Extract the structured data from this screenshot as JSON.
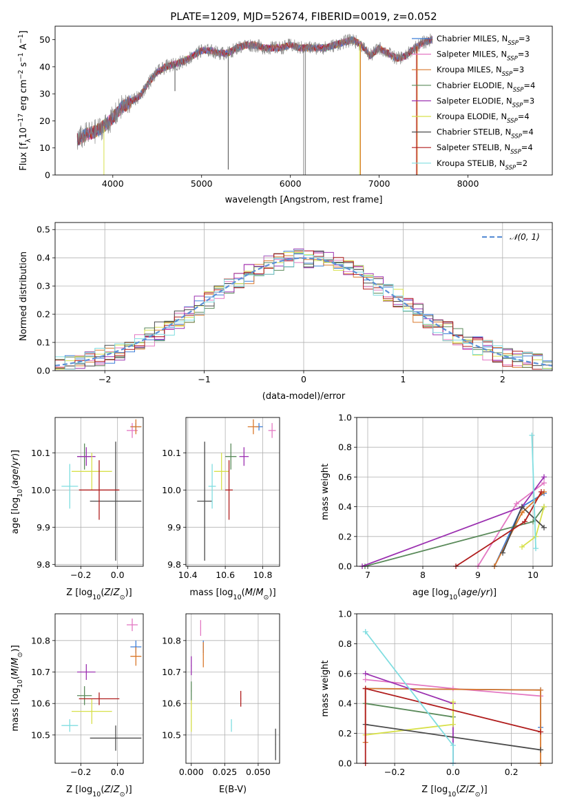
{
  "figure_title": "PLATE=1209, MJD=52674, FIBERID=0019, z=0.052",
  "colors": {
    "Chabrier MILES": "#3b7dd8",
    "Salpeter MILES": "#e377c2",
    "Kroupa MILES": "#d9782b",
    "Chabrier ELODIE": "#5a8a5a",
    "Salpeter ELODIE": "#9b30b0",
    "Kroupa ELODIE": "#d7e04a",
    "Chabrier STELIB": "#4a4a4a",
    "Salpeter STELIB": "#b01c1c",
    "Kroupa STELIB": "#7fdde0",
    "gaussian": "#5b8fd6",
    "data": "#808080"
  },
  "chart_data": [
    {
      "id": "spectrum",
      "type": "line",
      "xlabel": "wavelength [Angstrom, rest frame]",
      "ylabel_parts": [
        "Flux [f",
        "λ",
        "10",
        "−17",
        " erg cm",
        "−2",
        " s",
        "−1",
        " A",
        "−1",
        "]"
      ],
      "xlim": [
        3350,
        8950
      ],
      "ylim": [
        0,
        55
      ],
      "xticks": [
        4000,
        5000,
        6000,
        7000,
        8000
      ],
      "yticks": [
        0,
        10,
        20,
        30,
        40,
        50
      ],
      "grid": false,
      "legend_position": "top-right",
      "legend": [
        {
          "name": "Chabrier MILES",
          "nssp": "3"
        },
        {
          "name": "Salpeter MILES",
          "nssp": "3"
        },
        {
          "name": "Kroupa MILES",
          "nssp": "3"
        },
        {
          "name": "Chabrier ELODIE",
          "nssp": "4"
        },
        {
          "name": "Salpeter ELODIE",
          "nssp": "3"
        },
        {
          "name": "Kroupa ELODIE",
          "nssp": "4"
        },
        {
          "name": "Chabrier STELIB",
          "nssp": "4"
        },
        {
          "name": "Salpeter STELIB",
          "nssp": "4"
        },
        {
          "name": "Kroupa STELIB",
          "nssp": "2"
        }
      ],
      "continuum": {
        "x": [
          3600,
          3700,
          3800,
          3900,
          4000,
          4100,
          4200,
          4300,
          4400,
          4500,
          4600,
          4700,
          4800,
          4900,
          5000,
          5100,
          5200,
          5300,
          5400,
          5500,
          5600,
          5700,
          5800,
          5900,
          6000,
          6100,
          6200,
          6300,
          6400,
          6500,
          6600,
          6700,
          6800,
          6900,
          7000,
          7100,
          7200,
          7300,
          7400,
          7500,
          7600
        ],
        "y": [
          13,
          15,
          16,
          18,
          21,
          25,
          27,
          29,
          34,
          38,
          40,
          41,
          42,
          44,
          46,
          46,
          45,
          45,
          47,
          48,
          48,
          47,
          47,
          47,
          48,
          47,
          47,
          47,
          47,
          48,
          49,
          50,
          48,
          44,
          47,
          45,
          43,
          44,
          47,
          49,
          50
        ]
      },
      "spikes": [
        {
          "x": 3900,
          "y": 0,
          "series": "Kroupa ELODIE"
        },
        {
          "x": 4700,
          "y": 31,
          "series": "Chabrier STELIB"
        },
        {
          "x": 5300,
          "y": 2,
          "series": "Chabrier STELIB"
        },
        {
          "x": 6150,
          "y": 0,
          "series": "data"
        },
        {
          "x": 6170,
          "y": 0,
          "series": "data"
        },
        {
          "x": 6780,
          "y": 0,
          "series": "Kroupa ELODIE"
        },
        {
          "x": 6790,
          "y": 0,
          "series": "Kroupa MILES"
        },
        {
          "x": 7420,
          "y": 0,
          "series": "Salpeter STELIB"
        },
        {
          "x": 7430,
          "y": 0,
          "series": "Kroupa MILES"
        }
      ]
    },
    {
      "id": "residuals",
      "type": "line",
      "xlabel": "(data-model)/error",
      "ylabel": "Normed distribution",
      "xlim": [
        -2.5,
        2.5
      ],
      "ylim": [
        0,
        0.525
      ],
      "xticks": [
        -2,
        -1,
        0,
        1,
        2
      ],
      "yticks": [
        0.0,
        0.1,
        0.2,
        0.3,
        0.4,
        0.5
      ],
      "grid": true,
      "legend_position": "top-right",
      "legend": [
        {
          "name": "𝒩(0, 1)"
        }
      ],
      "bin_width": 0.1,
      "x_start": -2.5
    },
    {
      "id": "age-vs-Z",
      "type": "scatter",
      "xlabel": "Z [log10(Z/Z⊙)]",
      "ylabel": "age  [log10(age/yr)]",
      "xlim": [
        -0.34,
        0.14
      ],
      "ylim": [
        9.795,
        10.195
      ],
      "xticks": [
        -0.2,
        0.0
      ],
      "yticks": [
        9.8,
        9.9,
        10.0,
        10.1
      ],
      "grid": true,
      "points": [
        {
          "series": "Chabrier MILES",
          "x": 0.1,
          "y": 10.17,
          "xerr": 0.03,
          "yerr": 0.01
        },
        {
          "series": "Salpeter MILES",
          "x": 0.08,
          "y": 10.16,
          "xerr": 0.03,
          "yerr": 0.02
        },
        {
          "series": "Kroupa MILES",
          "x": 0.1,
          "y": 10.17,
          "xerr": 0.03,
          "yerr": 0.02
        },
        {
          "series": "Chabrier ELODIE",
          "x": -0.18,
          "y": 10.09,
          "xerr": 0.04,
          "yerr": 0.035
        },
        {
          "series": "Salpeter ELODIE",
          "x": -0.17,
          "y": 10.09,
          "xerr": 0.05,
          "yerr": 0.025
        },
        {
          "series": "Kroupa ELODIE",
          "x": -0.14,
          "y": 10.05,
          "xerr": 0.11,
          "yerr": 0.05
        },
        {
          "series": "Chabrier STELIB",
          "x": -0.01,
          "y": 9.97,
          "xerr": 0.14,
          "yerr": 0.16
        },
        {
          "series": "Salpeter STELIB",
          "x": -0.1,
          "y": 10.0,
          "xerr": 0.11,
          "yerr": 0.08
        },
        {
          "series": "Kroupa STELIB",
          "x": -0.26,
          "y": 10.01,
          "xerr": 0.045,
          "yerr": 0.06
        }
      ]
    },
    {
      "id": "age-vs-mass",
      "type": "scatter",
      "xlabel": "mass [log10(M/M⊙)]",
      "ylabel": "",
      "xlim": [
        10.39,
        10.89
      ],
      "ylim": [
        9.795,
        10.195
      ],
      "xticks": [
        10.4,
        10.6,
        10.8
      ],
      "yticks": [
        9.8,
        9.9,
        10.0,
        10.1
      ],
      "grid": true,
      "points": [
        {
          "series": "Chabrier MILES",
          "x": 10.78,
          "y": 10.17,
          "xerr": 0.02,
          "yerr": 0.01
        },
        {
          "series": "Salpeter MILES",
          "x": 10.85,
          "y": 10.16,
          "xerr": 0.02,
          "yerr": 0.02
        },
        {
          "series": "Kroupa MILES",
          "x": 10.75,
          "y": 10.17,
          "xerr": 0.03,
          "yerr": 0.02
        },
        {
          "series": "Chabrier ELODIE",
          "x": 10.63,
          "y": 10.09,
          "xerr": 0.03,
          "yerr": 0.035
        },
        {
          "series": "Salpeter ELODIE",
          "x": 10.7,
          "y": 10.09,
          "xerr": 0.025,
          "yerr": 0.025
        },
        {
          "series": "Kroupa ELODIE",
          "x": 10.58,
          "y": 10.05,
          "xerr": 0.04,
          "yerr": 0.05
        },
        {
          "series": "Chabrier STELIB",
          "x": 10.49,
          "y": 9.97,
          "xerr": 0.04,
          "yerr": 0.16
        },
        {
          "series": "Salpeter STELIB",
          "x": 10.62,
          "y": 10.0,
          "xerr": 0.02,
          "yerr": 0.08
        },
        {
          "series": "Kroupa STELIB",
          "x": 10.53,
          "y": 10.01,
          "xerr": 0.02,
          "yerr": 0.06
        }
      ]
    },
    {
      "id": "weight-vs-age",
      "type": "line",
      "xlabel": "age  [log10(age/yr)]",
      "ylabel": "mass weight",
      "xlim": [
        6.8,
        10.35
      ],
      "ylim": [
        0,
        1
      ],
      "xticks": [
        7,
        8,
        9,
        10
      ],
      "yticks": [
        0.0,
        0.2,
        0.4,
        0.6,
        0.8,
        1.0
      ],
      "grid": true,
      "series": [
        {
          "name": "Chabrier MILES",
          "x": [
            9.3,
            9.8,
            10.2
          ],
          "y": [
            0.0,
            0.4,
            0.49
          ]
        },
        {
          "name": "Salpeter MILES",
          "x": [
            9.0,
            9.7,
            10.2
          ],
          "y": [
            0.0,
            0.42,
            0.56
          ]
        },
        {
          "name": "Kroupa MILES",
          "x": [
            9.3,
            9.8,
            10.2
          ],
          "y": [
            0.0,
            0.36,
            0.5
          ]
        },
        {
          "name": "Chabrier ELODIE",
          "x": [
            6.95,
            10.0,
            10.2
          ],
          "y": [
            0.0,
            0.3,
            0.4
          ]
        },
        {
          "name": "Salpeter ELODIE",
          "x": [
            6.9,
            9.8,
            10.2
          ],
          "y": [
            0.0,
            0.4,
            0.6
          ]
        },
        {
          "name": "Kroupa ELODIE",
          "x": [
            9.8,
            10.05,
            10.2
          ],
          "y": [
            0.13,
            0.2,
            0.4
          ]
        },
        {
          "name": "Chabrier STELIB",
          "x": [
            9.45,
            9.8,
            10.2
          ],
          "y": [
            0.09,
            0.4,
            0.26
          ]
        },
        {
          "name": "Salpeter STELIB",
          "x": [
            8.6,
            9.85,
            10.15
          ],
          "y": [
            0.0,
            0.3,
            0.5
          ]
        },
        {
          "name": "Kroupa STELIB",
          "x": [
            9.98,
            10.05
          ],
          "y": [
            0.88,
            0.12
          ]
        }
      ]
    },
    {
      "id": "mass-vs-Z",
      "type": "scatter",
      "xlabel": "Z [log10(Z/Z⊙)]",
      "ylabel": "mass [log10(M/M⊙)]",
      "xlim": [
        -0.34,
        0.14
      ],
      "ylim": [
        10.41,
        10.885
      ],
      "xticks": [
        -0.2,
        0.0
      ],
      "yticks": [
        10.5,
        10.6,
        10.7,
        10.8
      ],
      "grid": true,
      "points": [
        {
          "series": "Chabrier MILES",
          "x": 0.1,
          "y": 10.78,
          "xerr": 0.03,
          "yerr": 0.02
        },
        {
          "series": "Salpeter MILES",
          "x": 0.08,
          "y": 10.85,
          "xerr": 0.03,
          "yerr": 0.02
        },
        {
          "series": "Kroupa MILES",
          "x": 0.1,
          "y": 10.75,
          "xerr": 0.03,
          "yerr": 0.03
        },
        {
          "series": "Chabrier ELODIE",
          "x": -0.18,
          "y": 10.625,
          "xerr": 0.04,
          "yerr": 0.03
        },
        {
          "series": "Salpeter ELODIE",
          "x": -0.17,
          "y": 10.7,
          "xerr": 0.05,
          "yerr": 0.025
        },
        {
          "series": "Kroupa ELODIE",
          "x": -0.14,
          "y": 10.575,
          "xerr": 0.11,
          "yerr": 0.04
        },
        {
          "series": "Chabrier STELIB",
          "x": -0.01,
          "y": 10.49,
          "xerr": 0.14,
          "yerr": 0.04
        },
        {
          "series": "Salpeter STELIB",
          "x": -0.1,
          "y": 10.615,
          "xerr": 0.11,
          "yerr": 0.02
        },
        {
          "series": "Kroupa STELIB",
          "x": -0.26,
          "y": 10.53,
          "xerr": 0.045,
          "yerr": 0.02
        }
      ]
    },
    {
      "id": "mass-vs-ebv",
      "type": "scatter",
      "xlabel": "E(B-V)",
      "ylabel": "",
      "xlim": [
        -0.004,
        0.066
      ],
      "ylim": [
        10.41,
        10.885
      ],
      "xticks": [
        0.0,
        0.025,
        0.05
      ],
      "xticklabels": [
        "0.000",
        "0.025",
        "0.050"
      ],
      "yticks": [
        10.5,
        10.6,
        10.7,
        10.8
      ],
      "grid": true,
      "points": [
        {
          "series": "Chabrier MILES",
          "x": 0.009,
          "y": 10.78,
          "yerr": 0.02
        },
        {
          "series": "Salpeter MILES",
          "x": 0.007,
          "y": 10.84,
          "yerr": 0.025
        },
        {
          "series": "Kroupa MILES",
          "x": 0.009,
          "y": 10.755,
          "yerr": 0.04
        },
        {
          "series": "Chabrier ELODIE",
          "x": 0.0,
          "y": 10.64,
          "yerr": 0.03
        },
        {
          "series": "Salpeter ELODIE",
          "x": 0.0,
          "y": 10.72,
          "yerr": 0.03
        },
        {
          "series": "Kroupa ELODIE",
          "x": 0.0,
          "y": 10.56,
          "yerr": 0.05
        },
        {
          "series": "Chabrier STELIB",
          "x": 0.063,
          "y": 10.47,
          "yerr": 0.05
        },
        {
          "series": "Salpeter STELIB",
          "x": 0.037,
          "y": 10.615,
          "yerr": 0.025
        },
        {
          "series": "Kroupa STELIB",
          "x": 0.03,
          "y": 10.53,
          "yerr": 0.02
        }
      ]
    },
    {
      "id": "weight-vs-Z",
      "type": "line",
      "xlabel": "Z [log10(Z/Z⊙)]",
      "ylabel": "mass weight",
      "xlim": [
        -0.33,
        0.34
      ],
      "ylim": [
        0,
        1
      ],
      "xticks": [
        -0.2,
        0.0,
        0.2
      ],
      "yticks": [
        0.0,
        0.2,
        0.4,
        0.6,
        0.8,
        1.0
      ],
      "grid": true,
      "series": [
        {
          "name": "Chabrier MILES",
          "x": [
            -0.3,
            0.3,
            0.3
          ],
          "y": [
            0.5,
            0.49,
            0.24
          ]
        },
        {
          "name": "Salpeter MILES",
          "x": [
            -0.3,
            0.0,
            0.3
          ],
          "y": [
            0.56,
            0.5,
            0.45
          ]
        },
        {
          "name": "Kroupa MILES",
          "x": [
            -0.3,
            -0.3,
            0.3,
            0.3
          ],
          "y": [
            0.14,
            0.5,
            0.49,
            0.0
          ]
        },
        {
          "name": "Chabrier ELODIE",
          "x": [
            -0.3,
            0.0
          ],
          "y": [
            0.4,
            0.31
          ]
        },
        {
          "name": "Salpeter ELODIE",
          "x": [
            -0.3,
            0.0,
            0.0
          ],
          "y": [
            0.6,
            0.4,
            0.0
          ]
        },
        {
          "name": "Kroupa ELODIE",
          "x": [
            -0.3,
            0.0,
            0.0
          ],
          "y": [
            0.19,
            0.26,
            0.41
          ]
        },
        {
          "name": "Chabrier STELIB",
          "x": [
            -0.3,
            0.3
          ],
          "y": [
            0.26,
            0.09
          ]
        },
        {
          "name": "Salpeter STELIB",
          "x": [
            -0.3,
            -0.3,
            0.3
          ],
          "y": [
            0.0,
            0.5,
            0.21
          ]
        },
        {
          "name": "Kroupa STELIB",
          "x": [
            -0.3,
            0.0,
            0.0
          ],
          "y": [
            0.88,
            0.12,
            0.0
          ]
        }
      ]
    }
  ]
}
